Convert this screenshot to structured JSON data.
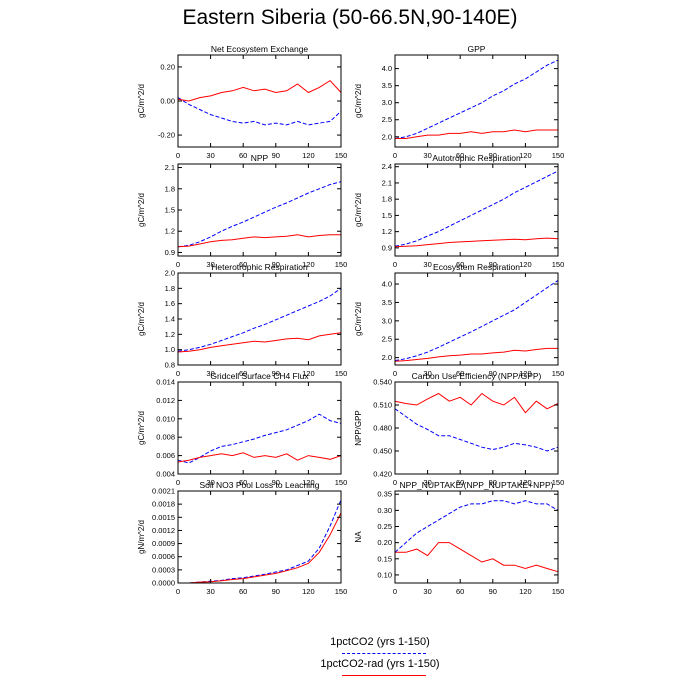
{
  "title": "Eastern Siberia (50-66.5N,90-140E)",
  "legend": [
    {
      "label": "1pctCO2 (yrs 1-150)",
      "color": "#0000ff",
      "dash": "dashed"
    },
    {
      "label": "1pctCO2-rad (yrs 1-150)",
      "color": "#ff0000",
      "dash": "solid"
    }
  ],
  "chart_data": [
    {
      "type": "line",
      "title": "Net Ecosystem Exchange",
      "ylabel": "gC/m^2/d",
      "xlim": [
        0,
        150
      ],
      "ylim": [
        -0.27,
        0.27
      ],
      "xticks": [
        "0",
        "30",
        "60",
        "90",
        "120",
        "150"
      ],
      "xtick_values": [
        0,
        30,
        60,
        90,
        120,
        150
      ],
      "yticks": [
        "-0.20",
        "0.00",
        "0.20"
      ],
      "ytick_values": [
        -0.2,
        0.0,
        0.2
      ],
      "x": [
        0,
        10,
        20,
        30,
        40,
        50,
        60,
        70,
        80,
        90,
        100,
        110,
        120,
        130,
        140,
        150
      ],
      "series": [
        {
          "name": "1pctCO2 (yrs 1-150)",
          "values": [
            0.02,
            -0.02,
            -0.05,
            -0.08,
            -0.1,
            -0.12,
            -0.13,
            -0.12,
            -0.14,
            -0.13,
            -0.14,
            -0.12,
            -0.14,
            -0.13,
            -0.12,
            -0.06
          ]
        },
        {
          "name": "1pctCO2-rad (yrs 1-150)",
          "values": [
            0.01,
            0.0,
            0.02,
            0.03,
            0.05,
            0.06,
            0.08,
            0.06,
            0.07,
            0.05,
            0.06,
            0.1,
            0.05,
            0.08,
            0.12,
            0.05
          ]
        }
      ]
    },
    {
      "type": "line",
      "title": "GPP",
      "ylabel": "gC/m^2/d",
      "xlim": [
        0,
        150
      ],
      "ylim": [
        1.7,
        4.4
      ],
      "xticks": [
        "0",
        "30",
        "60",
        "90",
        "120",
        "150"
      ],
      "xtick_values": [
        0,
        30,
        60,
        90,
        120,
        150
      ],
      "yticks": [
        "2.0",
        "2.5",
        "3.0",
        "3.5",
        "4.0"
      ],
      "ytick_values": [
        2.0,
        2.5,
        3.0,
        3.5,
        4.0
      ],
      "x": [
        0,
        10,
        20,
        30,
        40,
        50,
        60,
        70,
        80,
        90,
        100,
        110,
        120,
        130,
        140,
        150
      ],
      "series": [
        {
          "name": "1pctCO2 (yrs 1-150)",
          "values": [
            1.95,
            2.0,
            2.1,
            2.25,
            2.4,
            2.55,
            2.7,
            2.85,
            3.0,
            3.2,
            3.35,
            3.55,
            3.7,
            3.9,
            4.1,
            4.25
          ]
        },
        {
          "name": "1pctCO2-rad (yrs 1-150)",
          "values": [
            1.95,
            1.95,
            2.0,
            2.05,
            2.05,
            2.1,
            2.1,
            2.15,
            2.1,
            2.15,
            2.15,
            2.2,
            2.15,
            2.2,
            2.2,
            2.2
          ]
        }
      ]
    },
    {
      "type": "line",
      "title": "NPP",
      "ylabel": "gC/m^2/d",
      "xlim": [
        0,
        150
      ],
      "ylim": [
        0.85,
        2.15
      ],
      "xticks": [
        "0",
        "30",
        "60",
        "90",
        "120",
        "150"
      ],
      "xtick_values": [
        0,
        30,
        60,
        90,
        120,
        150
      ],
      "yticks": [
        "0.9",
        "1.2",
        "1.5",
        "1.8",
        "2.1"
      ],
      "ytick_values": [
        0.9,
        1.2,
        1.5,
        1.8,
        2.1
      ],
      "x": [
        0,
        10,
        20,
        30,
        40,
        50,
        60,
        70,
        80,
        90,
        100,
        110,
        120,
        130,
        140,
        150
      ],
      "series": [
        {
          "name": "1pctCO2 (yrs 1-150)",
          "values": [
            0.98,
            1.0,
            1.05,
            1.12,
            1.2,
            1.27,
            1.33,
            1.4,
            1.47,
            1.54,
            1.6,
            1.67,
            1.74,
            1.8,
            1.86,
            1.9
          ]
        },
        {
          "name": "1pctCO2-rad (yrs 1-150)",
          "values": [
            0.98,
            0.99,
            1.02,
            1.05,
            1.07,
            1.08,
            1.1,
            1.12,
            1.11,
            1.12,
            1.13,
            1.15,
            1.12,
            1.14,
            1.15,
            1.15
          ]
        }
      ]
    },
    {
      "type": "line",
      "title": "Autotrophic Respiration",
      "ylabel": "gC/m^2/d",
      "xlim": [
        0,
        150
      ],
      "ylim": [
        0.75,
        2.45
      ],
      "xticks": [
        "0",
        "30",
        "60",
        "90",
        "120",
        "150"
      ],
      "xtick_values": [
        0,
        30,
        60,
        90,
        120,
        150
      ],
      "yticks": [
        "0.9",
        "1.2",
        "1.5",
        "1.8",
        "2.1",
        "2.4"
      ],
      "ytick_values": [
        0.9,
        1.2,
        1.5,
        1.8,
        2.1,
        2.4
      ],
      "x": [
        0,
        10,
        20,
        30,
        40,
        50,
        60,
        70,
        80,
        90,
        100,
        110,
        120,
        130,
        140,
        150
      ],
      "series": [
        {
          "name": "1pctCO2 (yrs 1-150)",
          "values": [
            0.93,
            0.97,
            1.03,
            1.12,
            1.2,
            1.3,
            1.4,
            1.5,
            1.6,
            1.7,
            1.8,
            1.92,
            2.02,
            2.12,
            2.22,
            2.32
          ]
        },
        {
          "name": "1pctCO2-rad (yrs 1-150)",
          "values": [
            0.92,
            0.93,
            0.94,
            0.96,
            0.98,
            1.0,
            1.01,
            1.02,
            1.03,
            1.04,
            1.05,
            1.06,
            1.05,
            1.07,
            1.08,
            1.07
          ]
        }
      ]
    },
    {
      "type": "line",
      "title": "Heterotrophic Respiration",
      "ylabel": "gC/m^2/d",
      "xlim": [
        0,
        150
      ],
      "ylim": [
        0.8,
        2.0
      ],
      "xticks": [
        "0",
        "30",
        "60",
        "90",
        "120",
        "150"
      ],
      "xtick_values": [
        0,
        30,
        60,
        90,
        120,
        150
      ],
      "yticks": [
        "0.8",
        "1.0",
        "1.2",
        "1.4",
        "1.6",
        "1.8",
        "2.0"
      ],
      "ytick_values": [
        0.8,
        1.0,
        1.2,
        1.4,
        1.6,
        1.8,
        2.0
      ],
      "x": [
        0,
        10,
        20,
        30,
        40,
        50,
        60,
        70,
        80,
        90,
        100,
        110,
        120,
        130,
        140,
        150
      ],
      "series": [
        {
          "name": "1pctCO2 (yrs 1-150)",
          "values": [
            0.98,
            1.0,
            1.03,
            1.07,
            1.12,
            1.17,
            1.22,
            1.28,
            1.33,
            1.39,
            1.45,
            1.51,
            1.57,
            1.63,
            1.7,
            1.8
          ]
        },
        {
          "name": "1pctCO2-rad (yrs 1-150)",
          "values": [
            0.97,
            0.98,
            1.0,
            1.03,
            1.05,
            1.07,
            1.09,
            1.11,
            1.1,
            1.12,
            1.14,
            1.15,
            1.13,
            1.18,
            1.2,
            1.22
          ]
        }
      ]
    },
    {
      "type": "line",
      "title": "Ecosystem Respiration",
      "ylabel": "gC/m^2/d",
      "xlim": [
        0,
        150
      ],
      "ylim": [
        1.8,
        4.3
      ],
      "xticks": [
        "0",
        "30",
        "60",
        "90",
        "120",
        "150"
      ],
      "xtick_values": [
        0,
        30,
        60,
        90,
        120,
        150
      ],
      "yticks": [
        "2.0",
        "2.5",
        "3.0",
        "3.5",
        "4.0"
      ],
      "ytick_values": [
        2.0,
        2.5,
        3.0,
        3.5,
        4.0
      ],
      "x": [
        0,
        10,
        20,
        30,
        40,
        50,
        60,
        70,
        80,
        90,
        100,
        110,
        120,
        130,
        140,
        150
      ],
      "series": [
        {
          "name": "1pctCO2 (yrs 1-150)",
          "values": [
            1.92,
            1.97,
            2.05,
            2.15,
            2.28,
            2.42,
            2.56,
            2.7,
            2.85,
            3.0,
            3.15,
            3.3,
            3.5,
            3.7,
            3.9,
            4.1
          ]
        },
        {
          "name": "1pctCO2-rad (yrs 1-150)",
          "values": [
            1.9,
            1.92,
            1.95,
            1.98,
            2.02,
            2.05,
            2.07,
            2.1,
            2.1,
            2.13,
            2.15,
            2.2,
            2.18,
            2.22,
            2.25,
            2.25
          ]
        }
      ]
    },
    {
      "type": "line",
      "title": "Gridcell Surface CH4 Flux",
      "ylabel": "gC/m^2/d",
      "xlim": [
        0,
        150
      ],
      "ylim": [
        0.004,
        0.014
      ],
      "xticks": [
        "0",
        "30",
        "60",
        "90",
        "120",
        "150"
      ],
      "xtick_values": [
        0,
        30,
        60,
        90,
        120,
        150
      ],
      "yticks": [
        "0.004",
        "0.006",
        "0.008",
        "0.010",
        "0.012",
        "0.014"
      ],
      "ytick_values": [
        0.004,
        0.006,
        0.008,
        0.01,
        0.012,
        0.014
      ],
      "x": [
        0,
        10,
        20,
        30,
        40,
        50,
        60,
        70,
        80,
        90,
        100,
        110,
        120,
        130,
        140,
        150
      ],
      "series": [
        {
          "name": "1pctCO2 (yrs 1-150)",
          "values": [
            0.0055,
            0.0052,
            0.0058,
            0.0065,
            0.007,
            0.0072,
            0.0075,
            0.0078,
            0.0082,
            0.0085,
            0.0088,
            0.0093,
            0.0098,
            0.0105,
            0.0098,
            0.0095
          ]
        },
        {
          "name": "1pctCO2-rad (yrs 1-150)",
          "values": [
            0.0053,
            0.0055,
            0.0058,
            0.006,
            0.0062,
            0.006,
            0.0063,
            0.0058,
            0.006,
            0.0058,
            0.0062,
            0.0055,
            0.006,
            0.0058,
            0.0056,
            0.006
          ]
        }
      ]
    },
    {
      "type": "line",
      "title": "Carbon Use Efficiency (NPP/GPP)",
      "ylabel": "NPP/GPP",
      "xlim": [
        0,
        150
      ],
      "ylim": [
        0.42,
        0.54
      ],
      "xticks": [
        "0",
        "30",
        "60",
        "90",
        "120",
        "150"
      ],
      "xtick_values": [
        0,
        30,
        60,
        90,
        120,
        150
      ],
      "yticks": [
        "0.420",
        "0.450",
        "0.480",
        "0.510",
        "0.540"
      ],
      "ytick_values": [
        0.42,
        0.45,
        0.48,
        0.51,
        0.54
      ],
      "x": [
        0,
        10,
        20,
        30,
        40,
        50,
        60,
        70,
        80,
        90,
        100,
        110,
        120,
        130,
        140,
        150
      ],
      "series": [
        {
          "name": "1pctCO2 (yrs 1-150)",
          "values": [
            0.505,
            0.495,
            0.485,
            0.478,
            0.47,
            0.47,
            0.465,
            0.46,
            0.455,
            0.452,
            0.455,
            0.46,
            0.458,
            0.455,
            0.45,
            0.455
          ]
        },
        {
          "name": "1pctCO2-rad (yrs 1-150)",
          "values": [
            0.515,
            0.512,
            0.51,
            0.518,
            0.525,
            0.515,
            0.52,
            0.51,
            0.525,
            0.515,
            0.51,
            0.52,
            0.5,
            0.515,
            0.505,
            0.512
          ]
        }
      ]
    },
    {
      "type": "line",
      "title": "Soil NO3 Pool Loss to Leaching",
      "ylabel": "gN/m^2/d",
      "xlim": [
        0,
        150
      ],
      "ylim": [
        0.0,
        0.0021
      ],
      "xticks": [
        "0",
        "30",
        "60",
        "90",
        "120",
        "150"
      ],
      "xtick_values": [
        0,
        30,
        60,
        90,
        120,
        150
      ],
      "yticks": [
        "0.0000",
        "0.0003",
        "0.0006",
        "0.0009",
        "0.0012",
        "0.0015",
        "0.0018",
        "0.0021"
      ],
      "ytick_values": [
        0.0,
        0.0003,
        0.0006,
        0.0009,
        0.0012,
        0.0015,
        0.0018,
        0.0021
      ],
      "x": [
        0,
        10,
        20,
        30,
        40,
        50,
        60,
        70,
        80,
        90,
        100,
        110,
        120,
        130,
        140,
        150
      ],
      "series": [
        {
          "name": "1pctCO2 (yrs 1-150)",
          "values": [
            0.0,
            0.0,
            2e-05,
            4e-05,
            6e-05,
            0.0001,
            0.00012,
            0.00016,
            0.0002,
            0.00025,
            0.0003,
            0.0004,
            0.0005,
            0.0008,
            0.0013,
            0.0019
          ]
        },
        {
          "name": "1pctCO2-rad (yrs 1-150)",
          "values": [
            0.0,
            0.0,
            2e-05,
            3e-05,
            5e-05,
            8e-05,
            0.0001,
            0.00014,
            0.00018,
            0.00022,
            0.00028,
            0.00035,
            0.00045,
            0.0007,
            0.0011,
            0.0016
          ]
        }
      ]
    },
    {
      "type": "line",
      "title": "NPP_NUPTAKE/(NPP_NUPTAKE+NPP)",
      "ylabel": "NA",
      "xlim": [
        0,
        150
      ],
      "ylim": [
        0.075,
        0.36
      ],
      "xticks": [
        "0",
        "30",
        "60",
        "90",
        "120",
        "150"
      ],
      "xtick_values": [
        0,
        30,
        60,
        90,
        120,
        150
      ],
      "yticks": [
        "0.10",
        "0.15",
        "0.20",
        "0.25",
        "0.30",
        "0.35"
      ],
      "ytick_values": [
        0.1,
        0.15,
        0.2,
        0.25,
        0.3,
        0.35
      ],
      "x": [
        0,
        10,
        20,
        30,
        40,
        50,
        60,
        70,
        80,
        90,
        100,
        110,
        120,
        130,
        140,
        150
      ],
      "series": [
        {
          "name": "1pctCO2 (yrs 1-150)",
          "values": [
            0.17,
            0.2,
            0.23,
            0.25,
            0.27,
            0.29,
            0.31,
            0.32,
            0.32,
            0.33,
            0.33,
            0.32,
            0.33,
            0.32,
            0.32,
            0.3
          ]
        },
        {
          "name": "1pctCO2-rad (yrs 1-150)",
          "values": [
            0.17,
            0.17,
            0.18,
            0.16,
            0.2,
            0.2,
            0.18,
            0.16,
            0.14,
            0.15,
            0.13,
            0.13,
            0.12,
            0.13,
            0.12,
            0.11
          ]
        }
      ]
    }
  ]
}
